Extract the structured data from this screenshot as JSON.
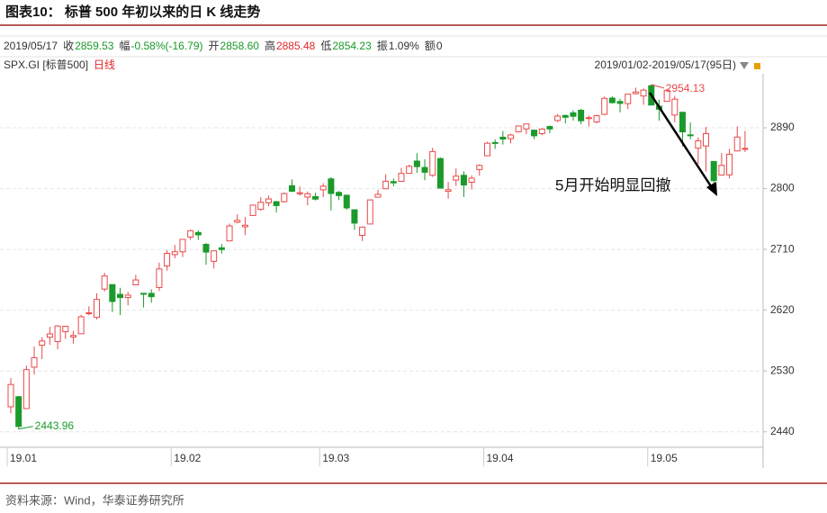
{
  "chart_data": {
    "type": "candlestick",
    "title": "图表10：  标普 500 年初以来的日 K 线走势",
    "instrument": "SPX.GI [标普500]",
    "period": "日线",
    "range_label": "2019/01/02-2019/05/17(95日)",
    "quote": [
      {
        "label": "2019/05/17",
        "value": "",
        "color": "#333333"
      },
      {
        "label": "收",
        "value": "2859.53",
        "color": "#1a9a2a"
      },
      {
        "label": "幅",
        "value": "-0.58%(-16.79)",
        "color": "#1a9a2a"
      },
      {
        "label": "开",
        "value": "2858.60",
        "color": "#1a9a2a"
      },
      {
        "label": "高",
        "value": "2885.48",
        "color": "#e0262b"
      },
      {
        "label": "低",
        "value": "2854.23",
        "color": "#1a9a2a"
      },
      {
        "label": "振",
        "value": "1.09%",
        "color": "#333333"
      },
      {
        "label": "额",
        "value": "0",
        "color": "#333333"
      }
    ],
    "categories": [
      "19.01",
      null,
      null,
      null,
      null,
      null,
      null,
      null,
      null,
      null,
      null,
      null,
      null,
      null,
      null,
      null,
      null,
      null,
      null,
      null,
      null,
      "19.02",
      null,
      null,
      null,
      null,
      null,
      null,
      null,
      null,
      null,
      null,
      null,
      null,
      null,
      null,
      null,
      null,
      null,
      null,
      "19.03",
      null,
      null,
      null,
      null,
      null,
      null,
      null,
      null,
      null,
      null,
      null,
      null,
      null,
      null,
      null,
      null,
      null,
      null,
      null,
      null,
      "19.04",
      null,
      null,
      null,
      null,
      null,
      null,
      null,
      null,
      null,
      null,
      null,
      null,
      null,
      null,
      null,
      null,
      null,
      null,
      null,
      null,
      "19.05",
      null,
      null,
      null,
      null,
      null,
      null,
      null,
      null,
      null,
      null,
      null,
      null
    ],
    "open": [
      2476.96,
      2491.92,
      2474.33,
      2535.61,
      2568.11,
      2580,
      2573.51,
      2588.11,
      2580.31,
      2585.1,
      2614.75,
      2609.28,
      2651.27,
      2657.88,
      2643.48,
      2638.84,
      2657.44,
      2644.97,
      2644.89,
      2653.62,
      2685.49,
      2702.32,
      2706.49,
      2728.34,
      2735.05,
      2717.53,
      2692.36,
      2712.4,
      2722.61,
      2750.3,
      2743.5,
      2760.24,
      2769.28,
      2779.05,
      2780.67,
      2780.67,
      2804.35,
      2792.36,
      2787.5,
      2788.11,
      2798.22,
      2814.37,
      2794.41,
      2790.27,
      2768.74,
      2730.79,
      2747.61,
      2787.34,
      2799.78,
      2810.38,
      2810.79,
      2822.61,
      2840.76,
      2831.34,
      2819.72,
      2844.52,
      2796.01,
      2812.66,
      2819.72,
      2809.4,
      2828.27,
      2848.63,
      2868.24,
      2876.09,
      2873.99,
      2884.16,
      2888.46,
      2886.58,
      2881.37,
      2891.92,
      2900.86,
      2908.32,
      2912.26,
      2916.04,
      2904.81,
      2898.78,
      2909.99,
      2934,
      2928.99,
      2925.81,
      2940.58,
      2937.14,
      2952.33,
      2922.16,
      2929.21,
      2908.89,
      2913.03,
      2879.61,
      2859.84,
      2863.1,
      2840.19,
      2820.12,
      2820.38,
      2855.8,
      2858.6
    ],
    "high": [
      2519.49,
      2493.14,
      2538.07,
      2566.16,
      2579.82,
      2595.32,
      2597.82,
      2596.27,
      2589.32,
      2613.08,
      2625.76,
      2645.06,
      2675.47,
      2657.88,
      2653.19,
      2647.2,
      2672.38,
      2644.97,
      2650.93,
      2690.44,
      2708.95,
      2716.66,
      2724.99,
      2738.98,
      2738.08,
      2719.32,
      2708.07,
      2718.05,
      2748.19,
      2761.85,
      2757.9,
      2775.66,
      2787.33,
      2789.88,
      2781.58,
      2794.2,
      2813.49,
      2803.12,
      2795.76,
      2793.73,
      2808.02,
      2816.88,
      2796.44,
      2790.27,
      2768.74,
      2744.13,
      2784,
      2798.32,
      2821.24,
      2815,
      2830.73,
      2835.41,
      2852.42,
      2843.54,
      2860.31,
      2846.16,
      2809.79,
      2829.87,
      2825.56,
      2819.71,
      2836.03,
      2869.4,
      2872.9,
      2885.25,
      2881.28,
      2893.24,
      2895.95,
      2886.88,
      2889.71,
      2893.42,
      2910.54,
      2909.6,
      2916.06,
      2918,
      2908.4,
      2909.51,
      2936.31,
      2936.83,
      2933.1,
      2939.88,
      2949.52,
      2948.22,
      2954.13,
      2931.68,
      2947.85,
      2937.32,
      2913.03,
      2897.96,
      2875.97,
      2891.31,
      2840.19,
      2852.54,
      2858.68,
      2892.15,
      2885.48
    ],
    "low": [
      2467.47,
      2443.96,
      2474.33,
      2524.56,
      2547.56,
      2568.89,
      2562.02,
      2577.4,
      2570.41,
      2585.1,
      2612.68,
      2606.36,
      2647.58,
      2617.27,
      2612.86,
      2627.01,
      2657.33,
      2624.06,
      2631.05,
      2648.34,
      2678.65,
      2696.88,
      2698.75,
      2724.03,
      2724.15,
      2687.26,
      2681.83,
      2703.79,
      2722.61,
      2748.63,
      2731.23,
      2760.24,
      2767.29,
      2774.06,
      2764.55,
      2779.11,
      2794.99,
      2789.47,
      2775.13,
      2782.51,
      2787.38,
      2767.66,
      2782.97,
      2768.69,
      2739.01,
      2722.27,
      2747.61,
      2786.73,
      2799.78,
      2803.46,
      2810.79,
      2821.99,
      2823.27,
      2812.43,
      2817.38,
      2800.47,
      2785.02,
      2803.99,
      2787.72,
      2798.77,
      2819.23,
      2848.63,
      2858.75,
      2865.17,
      2867.14,
      2882.99,
      2880.78,
      2873.33,
      2879.13,
      2881.99,
      2898.37,
      2896.48,
      2900.71,
      2895.45,
      2891.9,
      2896.35,
      2908.53,
      2926.05,
      2912.84,
      2917.56,
      2939.35,
      2924.11,
      2923.36,
      2900.5,
      2929.21,
      2898.21,
      2862.6,
      2873.28,
      2836.4,
      2825.39,
      2801.43,
      2820.12,
      2815.08,
      2855.8,
      2854.23
    ],
    "close": [
      2510.03,
      2447.89,
      2531.94,
      2549.69,
      2574.41,
      2584.96,
      2596.64,
      2596.26,
      2582.61,
      2610.3,
      2616.1,
      2635.96,
      2670.71,
      2632.9,
      2638.7,
      2642.33,
      2664.76,
      2643.85,
      2640,
      2681.05,
      2704.1,
      2706.53,
      2724.87,
      2737.7,
      2731.61,
      2706.05,
      2707.88,
      2709.8,
      2744.73,
      2753.03,
      2745.73,
      2775.6,
      2779.76,
      2784.7,
      2774.88,
      2792.67,
      2796.11,
      2793.9,
      2792.38,
      2784.49,
      2803.69,
      2792.81,
      2789.65,
      2771.45,
      2748.93,
      2743.07,
      2783.3,
      2791.52,
      2810.92,
      2808.48,
      2822.48,
      2832.94,
      2832.57,
      2824.23,
      2854.88,
      2800.71,
      2798.36,
      2818.46,
      2805.37,
      2815.44,
      2834.4,
      2867.19,
      2867.24,
      2873.4,
      2879.39,
      2892.74,
      2895.77,
      2878.2,
      2888.21,
      2888.32,
      2907.41,
      2905.58,
      2907.06,
      2900.45,
      2905.03,
      2907.97,
      2933.68,
      2927.25,
      2926.17,
      2939.88,
      2943.03,
      2945.83,
      2923.73,
      2917.52,
      2945.64,
      2932.47,
      2884.05,
      2879.42,
      2870.72,
      2881.4,
      2811.87,
      2834.41,
      2850.96,
      2876.32,
      2859.53
    ],
    "up_color": "#e8494a",
    "down_color": "#1a9a2a",
    "high_label": "2954.13",
    "low_label": "2443.96",
    "annotation": "5月开始明显回撤",
    "ylim": [
      2417,
      2966
    ],
    "yticks": [
      2440,
      2530,
      2620,
      2710,
      2800,
      2890
    ],
    "grid": true,
    "source": "资料来源：Wind，华泰证券研究所"
  }
}
